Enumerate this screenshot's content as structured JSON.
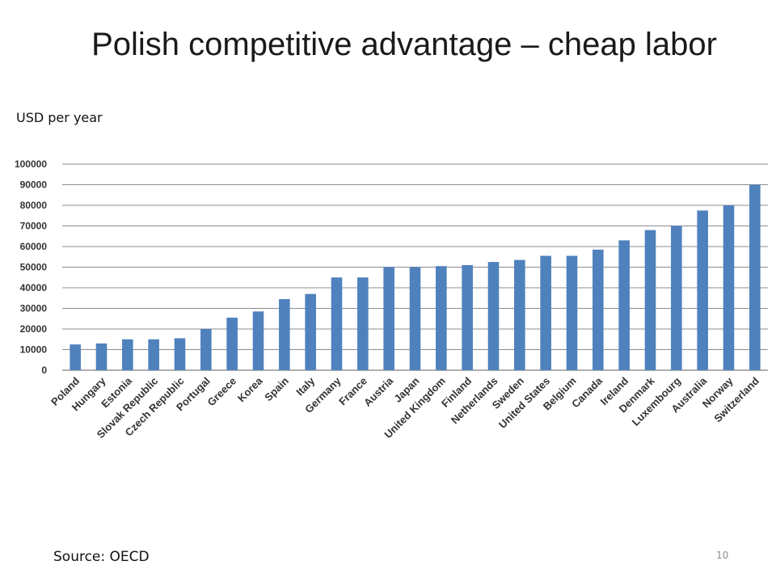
{
  "slide": {
    "title": "Polish competitive advantage – cheap labor",
    "unit_label": "USD per year",
    "source": "Source: OECD",
    "page_number": "10"
  },
  "chart_data": {
    "type": "bar",
    "categories": [
      "Poland",
      "Hungary",
      "Estonia",
      "Slovak Republic",
      "Czech Republic",
      "Portugal",
      "Greece",
      "Korea",
      "Spain",
      "Italy",
      "Germany",
      "France",
      "Austria",
      "Japan",
      "United Kingdom",
      "Finland",
      "Netherlands",
      "Sweden",
      "United States",
      "Belgium",
      "Canada",
      "Ireland",
      "Denmark",
      "Luxembourg",
      "Australia",
      "Norway",
      "Switzerland"
    ],
    "values": [
      12500,
      13000,
      15000,
      15000,
      15500,
      20000,
      25500,
      28500,
      34500,
      37000,
      45000,
      45000,
      50000,
      50000,
      50500,
      51000,
      52500,
      53500,
      55500,
      55500,
      58500,
      63000,
      68000,
      70000,
      77500,
      80000,
      90000
    ],
    "ylim": [
      0,
      100000
    ],
    "yticks": [
      0,
      10000,
      20000,
      30000,
      40000,
      50000,
      60000,
      70000,
      80000,
      90000,
      100000
    ],
    "grid": true,
    "bar_color": "#4f81bd"
  }
}
